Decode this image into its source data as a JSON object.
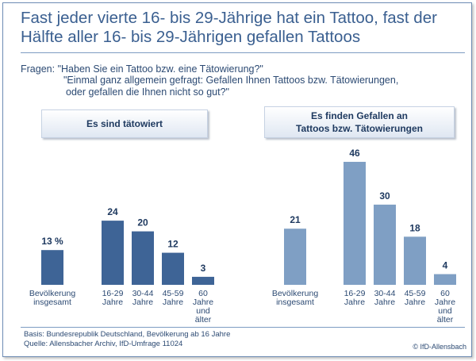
{
  "title": "Fast jeder vierte 16- bis 29-Jährige hat ein Tattoo, fast der Hälfte aller 16- bis 29-Jährigen gefallen Tattoos",
  "questions": {
    "prefix": "Fragen:",
    "q1": "\"Haben Sie ein Tattoo bzw. eine Tätowierung?\"",
    "q2_line1": "\"Einmal ganz allgemein gefragt: Gefallen Ihnen Tattoos bzw. Tätowierungen,",
    "q2_line2": "oder gefallen die Ihnen nicht so gut?\""
  },
  "panels": {
    "left_label": "Es sind tätowiert",
    "right_label_line1": "Es finden Gefallen an",
    "right_label_line2": "Tattoos bzw. Tätowierungen"
  },
  "footer": {
    "basis": "Basis: Bundesrepublik Deutschland, Bevölkerung ab 16 Jahre",
    "source": "Quelle: Allensbacher Archiv, IfD-Umfrage 11024",
    "copyright": "© IfD-Allensbach"
  },
  "colors": {
    "left_bars": "#3e6496",
    "right_bars": "#7f9fc4",
    "text": "#2c4a73"
  },
  "chart_data": [
    {
      "type": "bar",
      "title": "Es sind tätowiert",
      "unit": "%",
      "categories": [
        [
          "Bevölkerung",
          "insgesamt"
        ],
        [
          "16-29",
          "Jahre"
        ],
        [
          "30-44",
          "Jahre"
        ],
        [
          "45-59",
          "Jahre"
        ],
        [
          "60",
          "Jahre",
          "und",
          "älter"
        ]
      ],
      "values": [
        13,
        24,
        20,
        12,
        3
      ],
      "value_labels": [
        "13 %",
        "24",
        "20",
        "12",
        "3"
      ]
    },
    {
      "type": "bar",
      "title": "Es finden Gefallen an Tattoos bzw. Tätowierungen",
      "unit": "%",
      "categories": [
        [
          "Bevölkerung",
          "insgesamt"
        ],
        [
          "16-29",
          "Jahre"
        ],
        [
          "30-44",
          "Jahre"
        ],
        [
          "45-59",
          "Jahre"
        ],
        [
          "60",
          "Jahre",
          "und",
          "älter"
        ]
      ],
      "values": [
        21,
        46,
        30,
        18,
        4
      ],
      "value_labels": [
        "21",
        "46",
        "30",
        "18",
        "4"
      ]
    }
  ]
}
